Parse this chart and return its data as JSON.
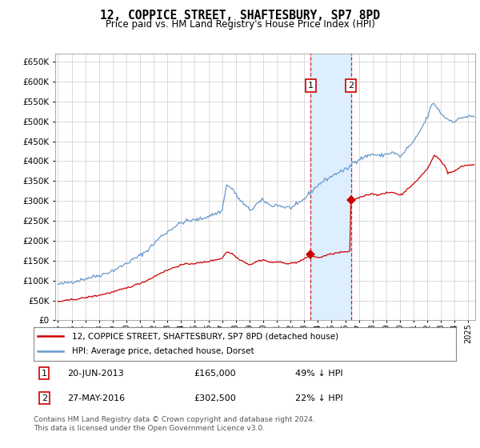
{
  "title": "12, COPPICE STREET, SHAFTESBURY, SP7 8PD",
  "subtitle": "Price paid vs. HM Land Registry's House Price Index (HPI)",
  "legend_label_red": "12, COPPICE STREET, SHAFTESBURY, SP7 8PD (detached house)",
  "legend_label_blue": "HPI: Average price, detached house, Dorset",
  "transaction1_date": "20-JUN-2013",
  "transaction1_price": 165000,
  "transaction1_price_str": "£165,000",
  "transaction1_pct": "49% ↓ HPI",
  "transaction2_date": "27-MAY-2016",
  "transaction2_price": 302500,
  "transaction2_price_str": "£302,500",
  "transaction2_pct": "22% ↓ HPI",
  "transaction1_x": 2013.47,
  "transaction2_x": 2016.41,
  "footer": "Contains HM Land Registry data © Crown copyright and database right 2024.\nThis data is licensed under the Open Government Licence v3.0.",
  "ylim": [
    0,
    670000
  ],
  "xlim": [
    1994.8,
    2025.5
  ],
  "grid_color": "#cccccc",
  "red_color": "#cc0000",
  "blue_color": "#6699cc",
  "shade_color": "#ddeeff"
}
